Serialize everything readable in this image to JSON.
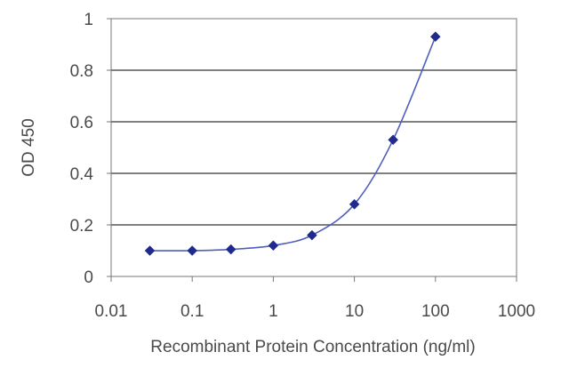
{
  "chart_data": {
    "type": "scatter",
    "title": "",
    "xlabel": "Recombinant Protein Concentration (ng/ml)",
    "ylabel": "OD 450",
    "x_scale": "log",
    "xlim": [
      0.01,
      1000
    ],
    "ylim": [
      0,
      1
    ],
    "x_ticks": [
      "0.01",
      "0.1",
      "1",
      "10",
      "100",
      "1000"
    ],
    "y_ticks": [
      "0",
      "0.2",
      "0.4",
      "0.6",
      "0.8",
      "1"
    ],
    "grid": "horizontal",
    "legend": "none",
    "series": [
      {
        "x": [
          0.03,
          0.1,
          0.3,
          1,
          3,
          10,
          30,
          100
        ],
        "y": [
          0.1,
          0.1,
          0.105,
          0.12,
          0.16,
          0.28,
          0.53,
          0.93
        ],
        "color": "#1f2a8c",
        "marker": "diamond",
        "fit_line": true
      }
    ]
  }
}
